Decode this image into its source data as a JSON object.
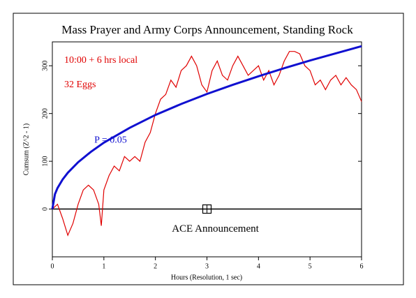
{
  "chart_data": {
    "type": "line",
    "title": "Mass Prayer and Army Corps Announcement, Standing Rock",
    "xlabel": "Hours (Resolution, 1 sec)",
    "ylabel": "Cumsum (Z^2 - 1)",
    "xlim": [
      0,
      6
    ],
    "ylim": [
      -100,
      350
    ],
    "xticks": [
      0,
      1,
      2,
      3,
      4,
      5,
      6
    ],
    "yticks": [
      0,
      100,
      200,
      300
    ],
    "hline": 0,
    "annotations": [
      "10:00 + 6 hrs local",
      "32 Eggs"
    ],
    "event": {
      "label": "ACE Announcement",
      "x": 3,
      "y": 0
    },
    "series": [
      {
        "name": "Cumsum",
        "color": "#e00000",
        "x": [
          0,
          0.1,
          0.2,
          0.3,
          0.4,
          0.5,
          0.6,
          0.7,
          0.8,
          0.9,
          0.95,
          1.0,
          1.1,
          1.2,
          1.3,
          1.4,
          1.5,
          1.6,
          1.7,
          1.8,
          1.9,
          2.0,
          2.1,
          2.2,
          2.3,
          2.4,
          2.5,
          2.6,
          2.7,
          2.8,
          2.9,
          3.0,
          3.1,
          3.2,
          3.3,
          3.4,
          3.5,
          3.6,
          3.7,
          3.8,
          3.9,
          4.0,
          4.1,
          4.2,
          4.3,
          4.4,
          4.5,
          4.6,
          4.7,
          4.8,
          4.9,
          5.0,
          5.1,
          5.2,
          5.3,
          5.4,
          5.5,
          5.6,
          5.7,
          5.8,
          5.9,
          6.0
        ],
        "values": [
          0,
          10,
          -20,
          -55,
          -30,
          10,
          40,
          50,
          40,
          10,
          -35,
          40,
          70,
          90,
          80,
          110,
          100,
          110,
          100,
          140,
          160,
          200,
          230,
          240,
          270,
          255,
          290,
          300,
          320,
          300,
          260,
          245,
          290,
          310,
          280,
          270,
          300,
          320,
          300,
          280,
          290,
          300,
          270,
          290,
          260,
          280,
          310,
          330,
          330,
          325,
          300,
          290,
          260,
          270,
          250,
          270,
          280,
          260,
          275,
          260,
          250,
          225
        ]
      },
      {
        "name": "P = 0.05",
        "color": "#1010d0",
        "x": [
          0,
          0.05,
          0.1,
          0.2,
          0.3,
          0.5,
          0.75,
          1,
          1.5,
          2,
          2.5,
          3,
          3.5,
          4,
          4.5,
          5,
          5.5,
          6
        ],
        "values": [
          0,
          31,
          44,
          62,
          76,
          98,
          120,
          139,
          170,
          197,
          220,
          241,
          260,
          278,
          295,
          311,
          326,
          341
        ]
      }
    ]
  }
}
